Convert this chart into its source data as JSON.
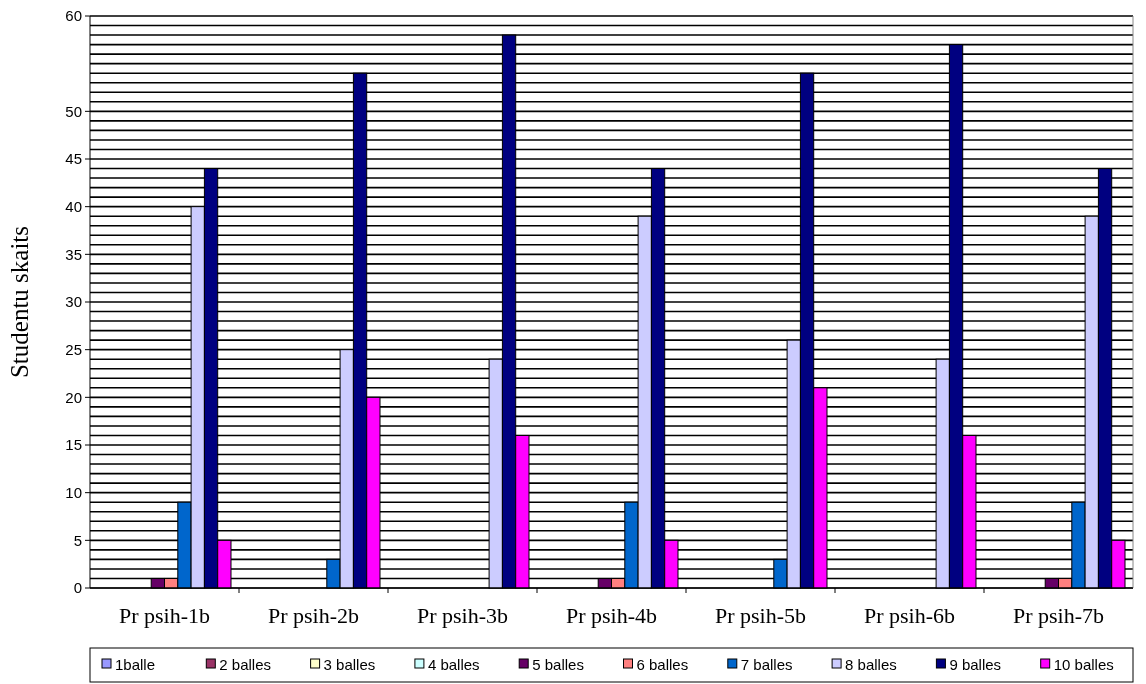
{
  "chart_data": {
    "type": "bar",
    "ylabel": "Studentu skaits",
    "categories": [
      "Pr psih-1b",
      "Pr psih-2b",
      "Pr psih-3b",
      "Pr psih-4b",
      "Pr psih-5b",
      "Pr psih-6b",
      "Pr psih-7b"
    ],
    "series": [
      {
        "name": "1balle",
        "color": "#9999ff",
        "values": [
          0,
          0,
          0,
          0,
          0,
          0,
          0
        ]
      },
      {
        "name": "2 balles",
        "color": "#993366",
        "values": [
          0,
          0,
          0,
          0,
          0,
          0,
          0
        ]
      },
      {
        "name": "3 balles",
        "color": "#ffffcc",
        "values": [
          0,
          0,
          0,
          0,
          0,
          0,
          0
        ]
      },
      {
        "name": "4 balles",
        "color": "#ccffff",
        "values": [
          0,
          0,
          0,
          0,
          0,
          0,
          0
        ]
      },
      {
        "name": "5 balles",
        "color": "#660066",
        "values": [
          1,
          0,
          0,
          1,
          0,
          0,
          1
        ]
      },
      {
        "name": "6 balles",
        "color": "#ff8080",
        "values": [
          1,
          0,
          0,
          1,
          0,
          0,
          1
        ]
      },
      {
        "name": "7 balles",
        "color": "#0066cc",
        "values": [
          9,
          3,
          0,
          9,
          3,
          0,
          9
        ]
      },
      {
        "name": "8 balles",
        "color": "#ccccff",
        "values": [
          40,
          25,
          24,
          39,
          26,
          24,
          39
        ]
      },
      {
        "name": "9 balles",
        "color": "#000080",
        "values": [
          44,
          54,
          58,
          44,
          54,
          57,
          44
        ]
      },
      {
        "name": "10 balles",
        "color": "#ff00ff",
        "values": [
          5,
          20,
          16,
          5,
          21,
          16,
          5
        ]
      }
    ],
    "ylim": [
      0,
      60
    ],
    "yticks": [
      0,
      {
        "value": 1,
        "label": null
      },
      {
        "value": 2,
        "label": null
      },
      {
        "value": 3,
        "label": null
      },
      {
        "value": 4,
        "label": null
      },
      5,
      {
        "value": 6,
        "label": null
      },
      {
        "value": 7,
        "label": null
      },
      {
        "value": 8,
        "label": null
      },
      {
        "value": 9,
        "label": null
      },
      10,
      {
        "value": 11,
        "label": null
      },
      {
        "value": 12,
        "label": null
      },
      {
        "value": 13,
        "label": null
      },
      {
        "value": 14,
        "label": null
      },
      15,
      {
        "value": 16,
        "label": null
      },
      {
        "value": 17,
        "label": null
      },
      {
        "value": 18,
        "label": null
      },
      {
        "value": 19,
        "label": null
      },
      20,
      {
        "value": 21,
        "label": null
      },
      {
        "value": 22,
        "label": null
      },
      {
        "value": 23,
        "label": null
      },
      {
        "value": 24,
        "label": null
      },
      25,
      {
        "value": 26,
        "label": null
      },
      {
        "value": 27,
        "label": null
      },
      {
        "value": 28,
        "label": null
      },
      {
        "value": 29,
        "label": null
      },
      30,
      {
        "value": 31,
        "label": null
      },
      {
        "value": 32,
        "label": null
      },
      {
        "value": 33,
        "label": null
      },
      {
        "value": 34,
        "label": null
      },
      35,
      {
        "value": 36,
        "label": null
      },
      {
        "value": 37,
        "label": null
      },
      {
        "value": 38,
        "label": null
      },
      {
        "value": 39,
        "label": null
      },
      40,
      {
        "value": 41,
        "label": null
      },
      {
        "value": 42,
        "label": null
      },
      {
        "value": 43,
        "label": null
      },
      {
        "value": 44,
        "label": null
      },
      45,
      {
        "value": 46,
        "label": null
      },
      {
        "value": 47,
        "label": null
      },
      {
        "value": 48,
        "label": null
      },
      {
        "value": 49,
        "label": null
      },
      50,
      {
        "value": 51,
        "label": null
      },
      {
        "value": 52,
        "label": null
      },
      {
        "value": 53,
        "label": null
      },
      {
        "value": 54,
        "label": null
      },
      {
        "value": 55,
        "label": null
      },
      {
        "value": 56,
        "label": null
      },
      {
        "value": 57,
        "label": null
      },
      {
        "value": 58,
        "label": null
      },
      {
        "value": 59,
        "label": null
      },
      60
    ],
    "grid": "y",
    "legend": "bottom"
  }
}
